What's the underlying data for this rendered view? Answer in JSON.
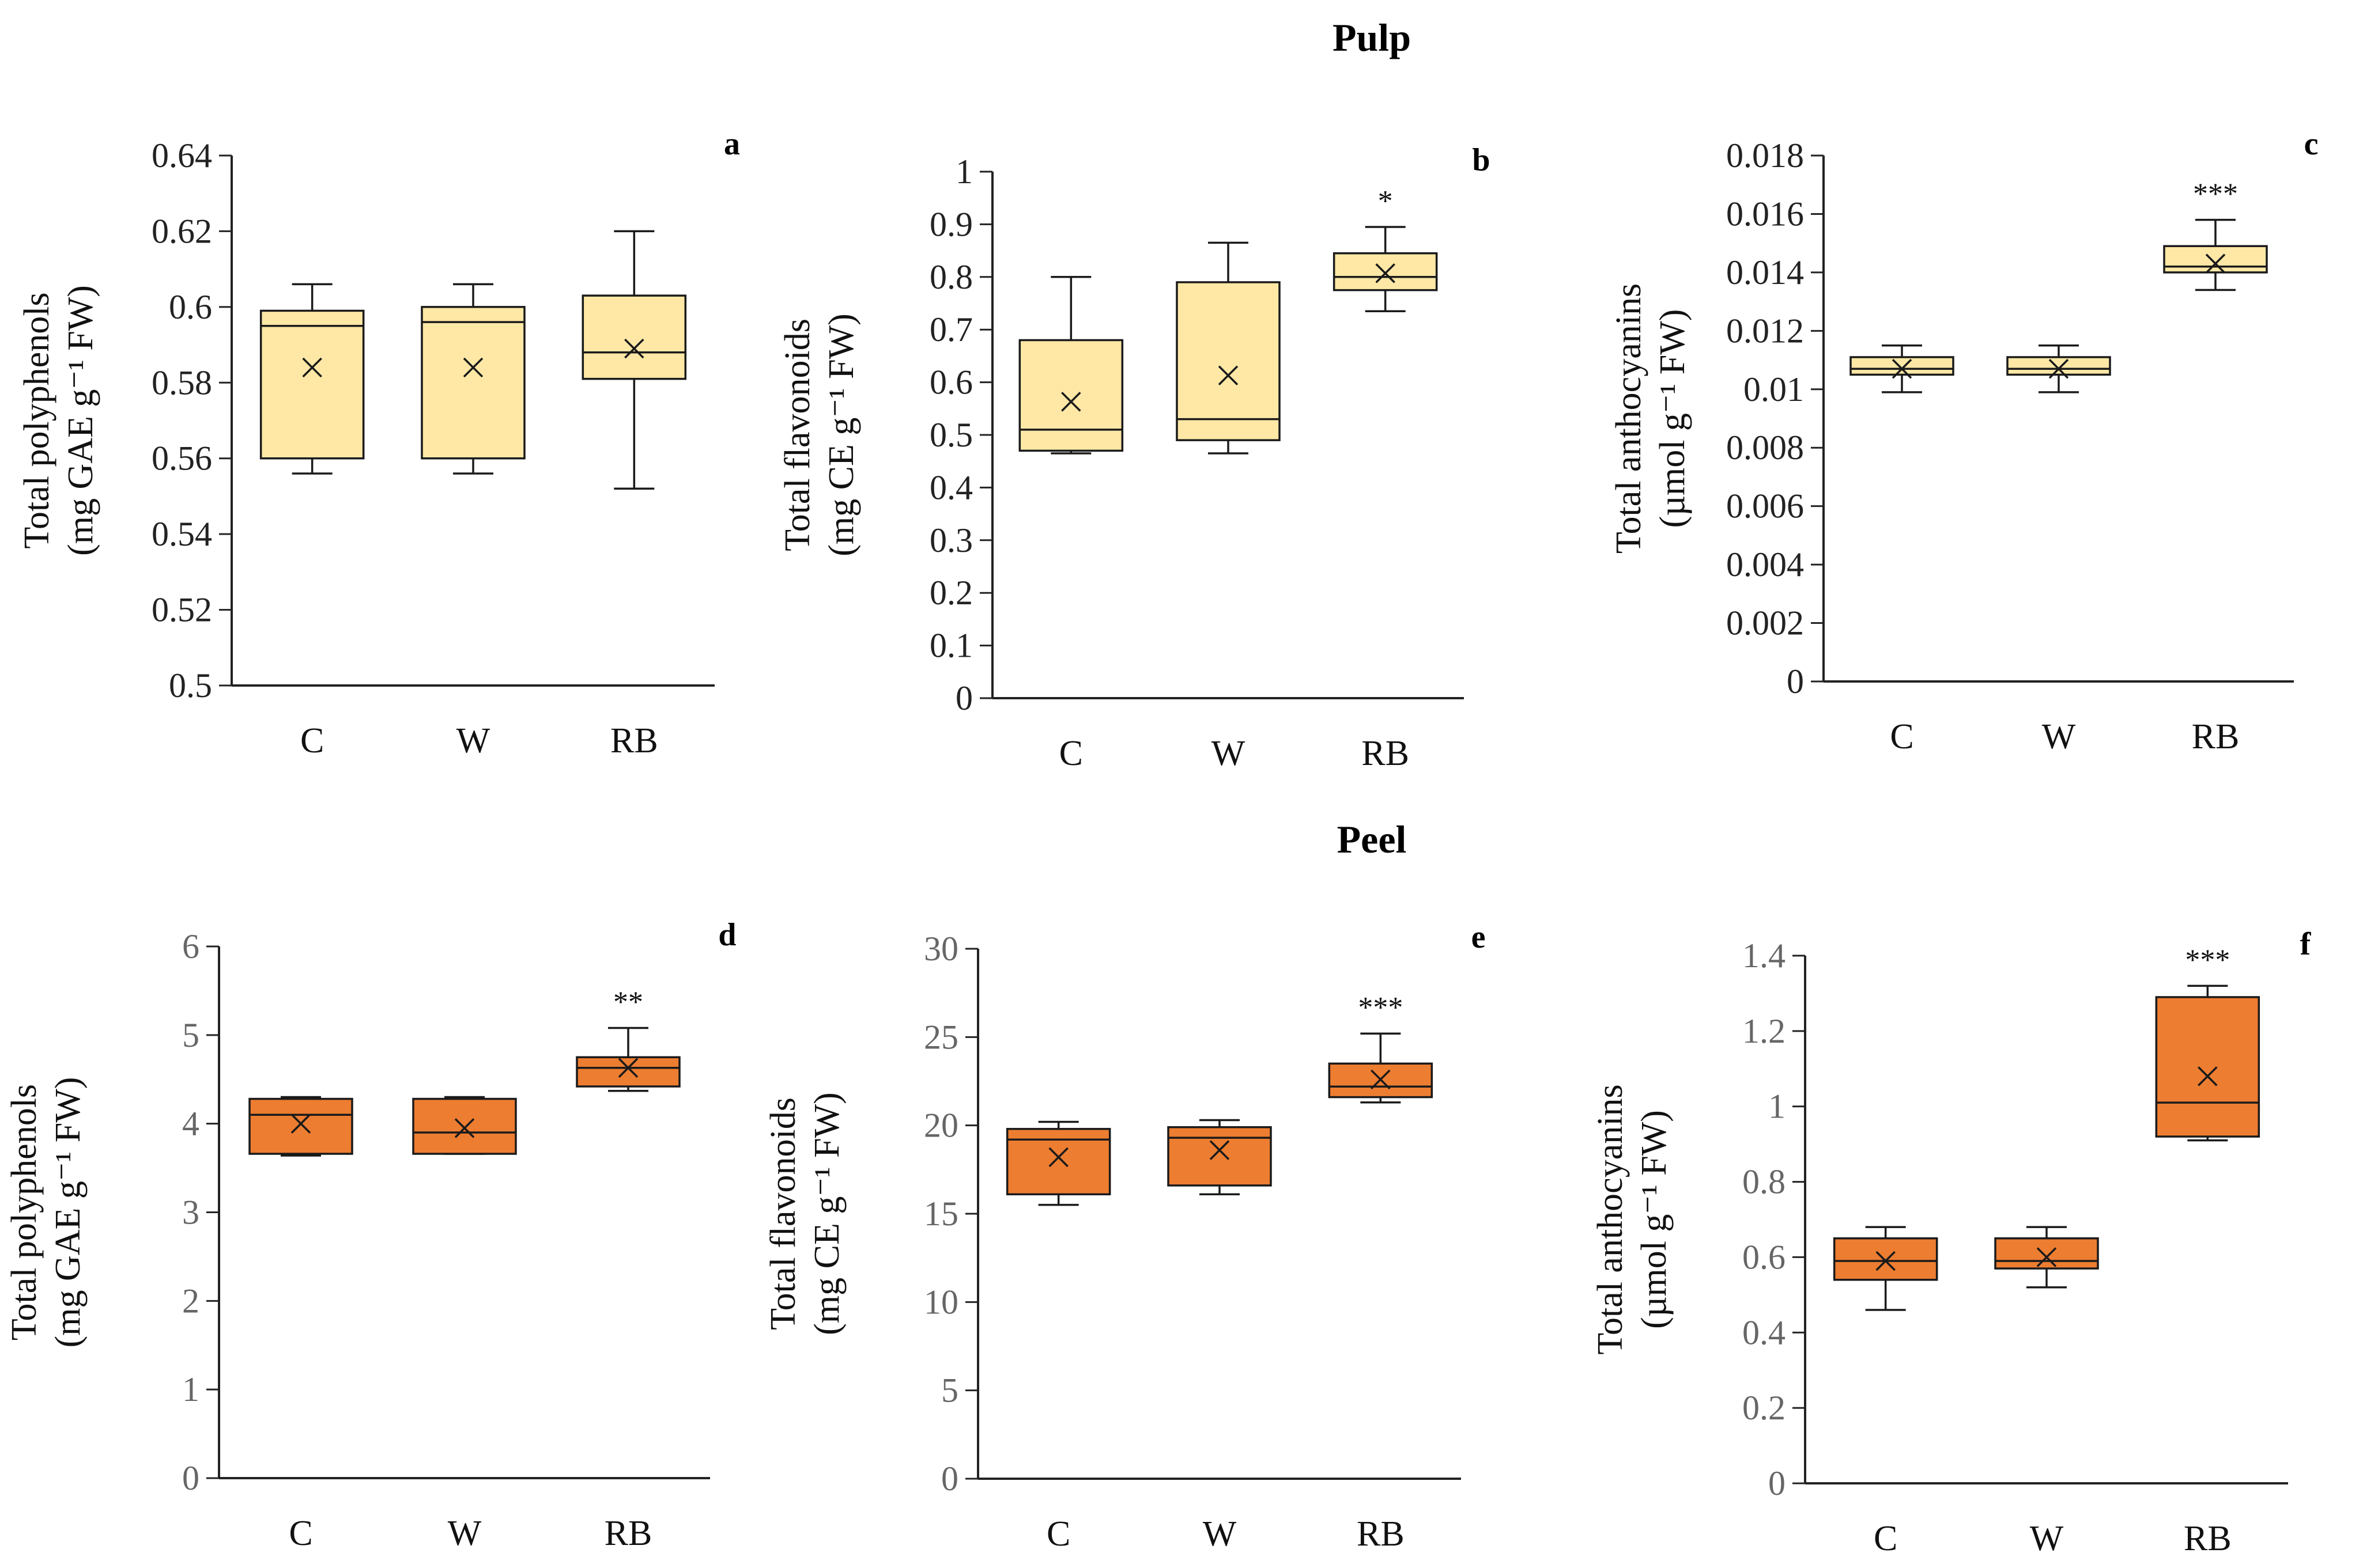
{
  "sections": [
    {
      "title": "Pulp"
    },
    {
      "title": "Peel"
    }
  ],
  "chart_data": [
    {
      "type": "box",
      "panel": "a",
      "section": "Pulp",
      "ylabel_line1": "Total polyphenols",
      "ylabel_line2": "(mg GAE g⁻¹ FW)",
      "ylim": [
        0.5,
        0.64
      ],
      "yticks": [
        "0.5",
        "0.52",
        "0.54",
        "0.56",
        "0.58",
        "0.6",
        "0.62",
        "0.64"
      ],
      "categories": [
        "C",
        "W",
        "RB"
      ],
      "fill": "#FFE8A6",
      "stroke": "#1a1a1a",
      "boxes": [
        {
          "min": 0.556,
          "q1": 0.56,
          "median": 0.595,
          "q3": 0.599,
          "max": 0.606,
          "mean": 0.584,
          "sig": ""
        },
        {
          "min": 0.556,
          "q1": 0.56,
          "median": 0.596,
          "q3": 0.6,
          "max": 0.606,
          "mean": 0.584,
          "sig": ""
        },
        {
          "min": 0.552,
          "q1": 0.581,
          "median": 0.588,
          "q3": 0.603,
          "max": 0.62,
          "mean": 0.589,
          "sig": ""
        }
      ]
    },
    {
      "type": "box",
      "panel": "b",
      "section": "Pulp",
      "ylabel_line1": "Total flavonoids",
      "ylabel_line2": "(mg CE g⁻¹ FW)",
      "ylim": [
        0,
        1
      ],
      "yticks": [
        "0",
        "0.1",
        "0.2",
        "0.3",
        "0.4",
        "0.5",
        "0.6",
        "0.7",
        "0.8",
        "0.9",
        "1"
      ],
      "categories": [
        "C",
        "W",
        "RB"
      ],
      "fill": "#FFE8A6",
      "stroke": "#1a1a1a",
      "boxes": [
        {
          "min": 0.465,
          "q1": 0.47,
          "median": 0.51,
          "q3": 0.68,
          "max": 0.8,
          "mean": 0.563,
          "sig": ""
        },
        {
          "min": 0.465,
          "q1": 0.49,
          "median": 0.53,
          "q3": 0.79,
          "max": 0.865,
          "mean": 0.613,
          "sig": ""
        },
        {
          "min": 0.735,
          "q1": 0.775,
          "median": 0.8,
          "q3": 0.845,
          "max": 0.895,
          "mean": 0.807,
          "sig": "*"
        }
      ]
    },
    {
      "type": "box",
      "panel": "c",
      "section": "Pulp",
      "ylabel_line1": "Total anthocyanins",
      "ylabel_line2": "(µmol g⁻¹ FW)",
      "ylim": [
        0,
        0.018
      ],
      "yticks": [
        "0",
        "0.002",
        "0.004",
        "0.006",
        "0.008",
        "0.01",
        "0.012",
        "0.014",
        "0.016",
        "0.018"
      ],
      "categories": [
        "C",
        "W",
        "RB"
      ],
      "fill": "#FFE8A6",
      "stroke": "#1a1a1a",
      "boxes": [
        {
          "min": 0.0099,
          "q1": 0.0105,
          "median": 0.0107,
          "q3": 0.0111,
          "max": 0.0115,
          "mean": 0.0107,
          "sig": ""
        },
        {
          "min": 0.0099,
          "q1": 0.0105,
          "median": 0.0107,
          "q3": 0.0111,
          "max": 0.0115,
          "mean": 0.0107,
          "sig": ""
        },
        {
          "min": 0.0134,
          "q1": 0.014,
          "median": 0.0142,
          "q3": 0.0149,
          "max": 0.0158,
          "mean": 0.0143,
          "sig": "***"
        }
      ]
    },
    {
      "type": "box",
      "panel": "d",
      "section": "Peel",
      "ylabel_line1": "Total polyphenols",
      "ylabel_line2": "(mg GAE g⁻¹ FW)",
      "ylim": [
        0,
        6
      ],
      "yticks": [
        "0",
        "1",
        "2",
        "3",
        "4",
        "5",
        "6"
      ],
      "categories": [
        "C",
        "W",
        "RB"
      ],
      "fill": "#ED7D31",
      "stroke": "#1a1a1a",
      "boxes": [
        {
          "min": 3.64,
          "q1": 3.66,
          "median": 4.1,
          "q3": 4.28,
          "max": 4.3,
          "mean": 4.0,
          "sig": ""
        },
        {
          "min": 3.66,
          "q1": 3.66,
          "median": 3.9,
          "q3": 4.28,
          "max": 4.3,
          "mean": 3.95,
          "sig": ""
        },
        {
          "min": 4.37,
          "q1": 4.42,
          "median": 4.63,
          "q3": 4.75,
          "max": 5.08,
          "mean": 4.63,
          "sig": "**"
        }
      ]
    },
    {
      "type": "box",
      "panel": "e",
      "section": "Peel",
      "ylabel_line1": "Total flavonoids",
      "ylabel_line2": "(mg CE g⁻¹ FW)",
      "ylim": [
        0,
        30
      ],
      "yticks": [
        "0",
        "5",
        "10",
        "15",
        "20",
        "25",
        "30"
      ],
      "categories": [
        "C",
        "W",
        "RB"
      ],
      "fill": "#ED7D31",
      "stroke": "#1a1a1a",
      "boxes": [
        {
          "min": 15.5,
          "q1": 16.1,
          "median": 19.2,
          "q3": 19.8,
          "max": 20.2,
          "mean": 18.2,
          "sig": ""
        },
        {
          "min": 16.1,
          "q1": 16.6,
          "median": 19.3,
          "q3": 19.9,
          "max": 20.3,
          "mean": 18.6,
          "sig": ""
        },
        {
          "min": 21.3,
          "q1": 21.6,
          "median": 22.2,
          "q3": 23.5,
          "max": 25.2,
          "mean": 22.6,
          "sig": "***"
        }
      ]
    },
    {
      "type": "box",
      "panel": "f",
      "section": "Peel",
      "ylabel_line1": "Total anthocyanins",
      "ylabel_line2": "(µmol g⁻¹  FW)",
      "ylim": [
        0,
        1.4
      ],
      "yticks": [
        "0",
        "0.2",
        "0.4",
        "0.6",
        "0.8",
        "1",
        "1.2",
        "1.4"
      ],
      "categories": [
        "C",
        "W",
        "RB"
      ],
      "fill": "#ED7D31",
      "stroke": "#1a1a1a",
      "boxes": [
        {
          "min": 0.46,
          "q1": 0.54,
          "median": 0.59,
          "q3": 0.65,
          "max": 0.68,
          "mean": 0.59,
          "sig": ""
        },
        {
          "min": 0.52,
          "q1": 0.57,
          "median": 0.59,
          "q3": 0.65,
          "max": 0.68,
          "mean": 0.6,
          "sig": ""
        },
        {
          "min": 0.91,
          "q1": 0.92,
          "median": 1.01,
          "q3": 1.29,
          "max": 1.32,
          "mean": 1.08,
          "sig": "***"
        }
      ]
    }
  ]
}
